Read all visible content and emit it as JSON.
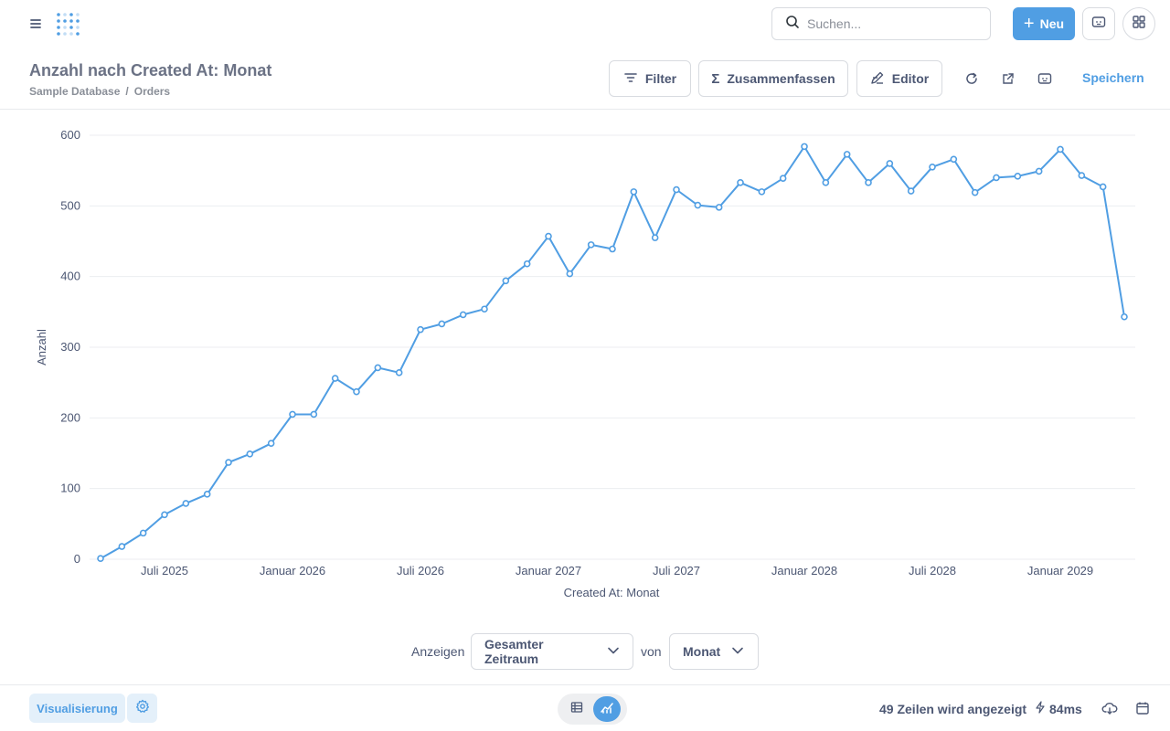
{
  "nav": {
    "search_placeholder": "Suchen...",
    "new_label": "Neu"
  },
  "header": {
    "title": "Anzahl nach Created At: Monat",
    "breadcrumb": [
      "Sample Database",
      "Orders"
    ],
    "breadcrumb_sep": "/",
    "filter_label": "Filter",
    "summarize_label": "Zusammenfassen",
    "editor_label": "Editor",
    "save_label": "Speichern"
  },
  "chart_data": {
    "type": "line",
    "xlabel": "Created At: Monat",
    "ylabel": "Anzahl",
    "ylim": [
      0,
      600
    ],
    "yticks": [
      0,
      100,
      200,
      300,
      400,
      500,
      600
    ],
    "x_start": "2025-04",
    "x_end": "2029-04",
    "xticks": [
      {
        "month": "2025-07",
        "label": "Juli 2025"
      },
      {
        "month": "2026-01",
        "label": "Januar 2026"
      },
      {
        "month": "2026-07",
        "label": "Juli 2026"
      },
      {
        "month": "2027-01",
        "label": "Januar 2027"
      },
      {
        "month": "2027-07",
        "label": "Juli 2027"
      },
      {
        "month": "2028-01",
        "label": "Januar 2028"
      },
      {
        "month": "2028-07",
        "label": "Juli 2028"
      },
      {
        "month": "2029-01",
        "label": "Januar 2029"
      }
    ],
    "grid": true,
    "series": [
      {
        "color": "#509ee3",
        "x": [
          "2025-04",
          "2025-05",
          "2025-06",
          "2025-07",
          "2025-08",
          "2025-09",
          "2025-10",
          "2025-11",
          "2025-12",
          "2026-01",
          "2026-02",
          "2026-03",
          "2026-04",
          "2026-05",
          "2026-06",
          "2026-07",
          "2026-08",
          "2026-09",
          "2026-10",
          "2026-11",
          "2026-12",
          "2027-01",
          "2027-02",
          "2027-03",
          "2027-04",
          "2027-05",
          "2027-06",
          "2027-07",
          "2027-08",
          "2027-09",
          "2027-10",
          "2027-11",
          "2027-12",
          "2028-01",
          "2028-02",
          "2028-03",
          "2028-04",
          "2028-05",
          "2028-06",
          "2028-07",
          "2028-08",
          "2028-09",
          "2028-10",
          "2028-11",
          "2028-12",
          "2029-01",
          "2029-02",
          "2029-03",
          "2029-04"
        ],
        "values": [
          1,
          18,
          37,
          63,
          79,
          92,
          137,
          149,
          164,
          205,
          205,
          256,
          237,
          271,
          264,
          325,
          333,
          346,
          354,
          394,
          418,
          457,
          404,
          445,
          439,
          520,
          455,
          523,
          501,
          498,
          533,
          520,
          539,
          584,
          533,
          573,
          533,
          560,
          521,
          555,
          566,
          519,
          540,
          542,
          549,
          580,
          543,
          527,
          343
        ]
      }
    ]
  },
  "controls": {
    "show_label": "Anzeigen",
    "range_value": "Gesamter Zeitraum",
    "of_label": "von",
    "unit_value": "Monat"
  },
  "footer": {
    "viz_label": "Visualisierung",
    "rows_text": "49 Zeilen wird angezeigt",
    "timing": "84ms"
  },
  "colors": {
    "accent": "#509ee3",
    "text": "#4c5773",
    "border": "#d8dbe0"
  }
}
